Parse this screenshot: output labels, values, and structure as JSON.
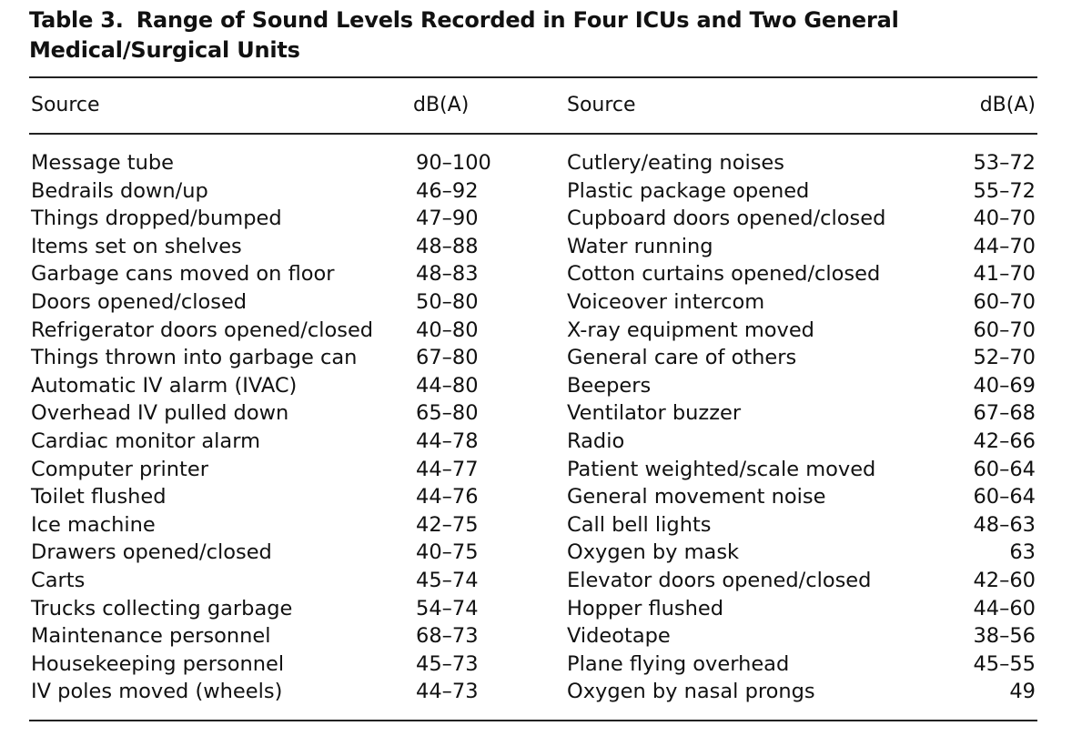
{
  "caption": {
    "label": "Table 3.",
    "title": "Range of Sound Levels Recorded in Four ICUs and Two General Medical/Surgical Units"
  },
  "headers": {
    "source_left": "Source",
    "db_left": "dB(A)",
    "source_right": "Source",
    "db_right": "dB(A)"
  },
  "rows": [
    {
      "src_l": "Message tube",
      "db_l": "90–100",
      "src_r": "Cutlery/eating noises",
      "db_r": "53–72"
    },
    {
      "src_l": "Bedrails down/up",
      "db_l": "46–92",
      "src_r": "Plastic package opened",
      "db_r": "55–72"
    },
    {
      "src_l": "Things dropped/bumped",
      "db_l": "47–90",
      "src_r": "Cupboard doors opened/closed",
      "db_r": "40–70"
    },
    {
      "src_l": "Items set on shelves",
      "db_l": "48–88",
      "src_r": "Water running",
      "db_r": "44–70"
    },
    {
      "src_l": "Garbage cans moved on floor",
      "db_l": "48–83",
      "src_r": "Cotton curtains opened/closed",
      "db_r": "41–70"
    },
    {
      "src_l": "Doors opened/closed",
      "db_l": "50–80",
      "src_r": "Voiceover intercom",
      "db_r": "60–70"
    },
    {
      "src_l": "Refrigerator doors opened/closed",
      "db_l": "40–80",
      "src_r": "X-ray equipment moved",
      "db_r": "60–70"
    },
    {
      "src_l": "Things thrown into garbage can",
      "db_l": "67–80",
      "src_r": "General care of others",
      "db_r": "52–70"
    },
    {
      "src_l": "Automatic IV alarm (IVAC)",
      "db_l": "44–80",
      "src_r": "Beepers",
      "db_r": "40–69"
    },
    {
      "src_l": "Overhead IV pulled down",
      "db_l": "65–80",
      "src_r": "Ventilator buzzer",
      "db_r": "67–68"
    },
    {
      "src_l": "Cardiac monitor alarm",
      "db_l": "44–78",
      "src_r": "Radio",
      "db_r": "42–66"
    },
    {
      "src_l": "Computer printer",
      "db_l": "44–77",
      "src_r": "Patient weighted/scale moved",
      "db_r": "60–64"
    },
    {
      "src_l": "Toilet flushed",
      "db_l": "44–76",
      "src_r": "General movement noise",
      "db_r": "60–64"
    },
    {
      "src_l": "Ice machine",
      "db_l": "42–75",
      "src_r": "Call bell lights",
      "db_r": "48–63"
    },
    {
      "src_l": "Drawers opened/closed",
      "db_l": "40–75",
      "src_r": "Oxygen by mask",
      "db_r": "63"
    },
    {
      "src_l": "Carts",
      "db_l": "45–74",
      "src_r": "Elevator doors opened/closed",
      "db_r": "42–60"
    },
    {
      "src_l": "Trucks collecting garbage",
      "db_l": "54–74",
      "src_r": "Hopper flushed",
      "db_r": "44–60"
    },
    {
      "src_l": "Maintenance personnel",
      "db_l": "68–73",
      "src_r": "Videotape",
      "db_r": "38–56"
    },
    {
      "src_l": "Housekeeping personnel",
      "db_l": "45–73",
      "src_r": "Plane flying overhead",
      "db_r": "45–55"
    },
    {
      "src_l": "IV poles moved (wheels)",
      "db_l": "44–73",
      "src_r": "Oxygen by nasal prongs",
      "db_r": "49"
    }
  ]
}
